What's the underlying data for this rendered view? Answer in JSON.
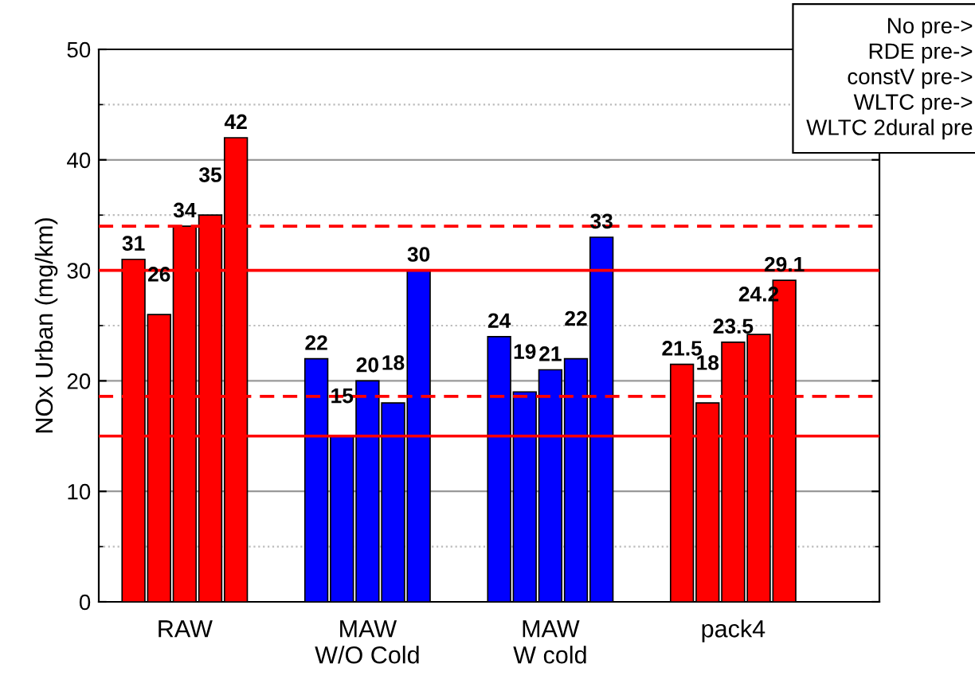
{
  "chart_data": {
    "type": "bar",
    "ylabel": "NOx Urban (mg/km)",
    "categories": [
      "RAW",
      "MAW\nW/O Cold",
      "MAW\nW cold",
      "pack4"
    ],
    "series": [
      {
        "colors": [
          "#ff0000",
          "#0000ff",
          "#0000ff",
          "#ff0000"
        ],
        "values": [
          31,
          22,
          24,
          21.5
        ]
      },
      {
        "colors": [
          "#ff0000",
          "#0000ff",
          "#0000ff",
          "#ff0000"
        ],
        "values": [
          26,
          15,
          19,
          18
        ]
      },
      {
        "colors": [
          "#ff0000",
          "#0000ff",
          "#0000ff",
          "#ff0000"
        ],
        "values": [
          34,
          20,
          21,
          23.5
        ]
      },
      {
        "colors": [
          "#ff0000",
          "#0000ff",
          "#0000ff",
          "#ff0000"
        ],
        "values": [
          35,
          18,
          22,
          24.2
        ]
      },
      {
        "colors": [
          "#ff0000",
          "#0000ff",
          "#0000ff",
          "#ff0000"
        ],
        "values": [
          42,
          30,
          33,
          29.1
        ]
      }
    ],
    "ylim": [
      0,
      50
    ],
    "yticks": [
      0,
      10,
      20,
      30,
      40,
      50
    ],
    "grid": "y",
    "data_labels": true,
    "ref_lines": [
      {
        "axis": "y",
        "value": 15,
        "color": "#ff0000",
        "line_style": "solid"
      },
      {
        "axis": "y",
        "value": 30,
        "color": "#ff0000",
        "line_style": "solid"
      },
      {
        "axis": "y",
        "value": 18.6,
        "color": "#ff0000",
        "line_style": "dashed"
      },
      {
        "axis": "y",
        "value": 34,
        "color": "#ff0000",
        "line_style": "dashed"
      }
    ],
    "annotations": [
      "No pre->\nRDE pre->\nconstV pre->\nWLTC pre->\nWLTC 2dural pre"
    ]
  }
}
